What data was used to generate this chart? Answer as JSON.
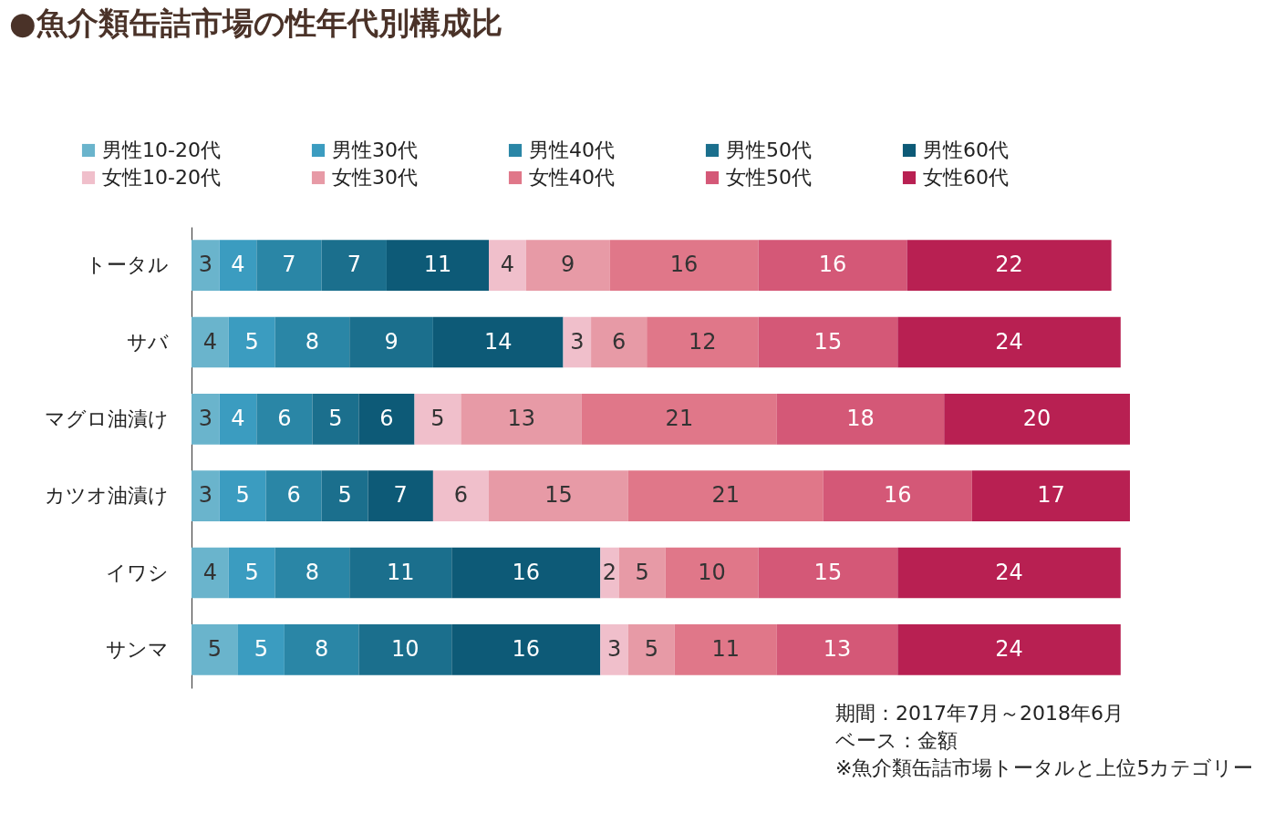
{
  "chart_data": {
    "type": "bar",
    "orientation": "horizontal",
    "stacked": true,
    "data_labels": true,
    "legend": "top",
    "title": "●魚介類缶詰市場の性年代別構成比",
    "categories": [
      "トータル",
      "サバ",
      "マグロ油漬け",
      "カツオ油漬け",
      "イワシ",
      "サンマ"
    ],
    "series": [
      {
        "name": "男性10-20代",
        "color": "#6ab4cc",
        "values": [
          3,
          4,
          3,
          3,
          4,
          5
        ]
      },
      {
        "name": "男性30代",
        "color": "#3b9cc0",
        "values": [
          4,
          5,
          4,
          5,
          5,
          5
        ]
      },
      {
        "name": "男性40代",
        "color": "#2a86a6",
        "values": [
          7,
          8,
          6,
          6,
          8,
          8
        ]
      },
      {
        "name": "男性50代",
        "color": "#1b6f8d",
        "values": [
          7,
          9,
          5,
          5,
          11,
          10
        ]
      },
      {
        "name": "男性60代",
        "color": "#0d5a77",
        "values": [
          11,
          14,
          6,
          7,
          16,
          16
        ]
      },
      {
        "name": "女性10-20代",
        "color": "#f0bfcb",
        "values": [
          4,
          3,
          5,
          6,
          2,
          3
        ]
      },
      {
        "name": "女性30代",
        "color": "#e79aa6",
        "values": [
          9,
          6,
          13,
          15,
          5,
          5
        ]
      },
      {
        "name": "女性40代",
        "color": "#e07789",
        "values": [
          16,
          12,
          21,
          21,
          10,
          11
        ]
      },
      {
        "name": "女性50代",
        "color": "#d45877",
        "values": [
          16,
          15,
          18,
          16,
          15,
          13
        ]
      },
      {
        "name": "女性60代",
        "color": "#b82052",
        "values": [
          22,
          24,
          20,
          17,
          24,
          24
        ]
      }
    ],
    "annotations": [
      "期間：2017年7月～2018年6月",
      "ベース：金額",
      "※魚介類缶詰市場トータルと上位5カテゴリー"
    ]
  }
}
